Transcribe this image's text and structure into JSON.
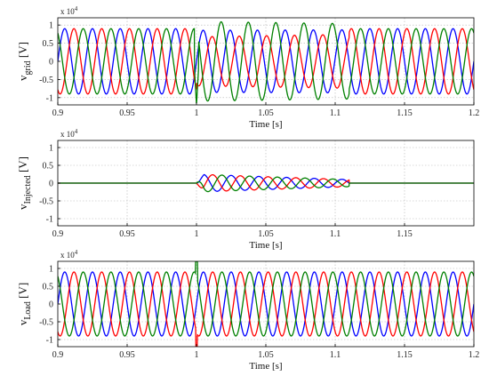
{
  "chart_data": [
    {
      "type": "line",
      "ylabel": {
        "base": "v",
        "sub": "grid",
        "unit": " [V]"
      },
      "xlabel": "Time [s]",
      "xlim": [
        0.9,
        1.2
      ],
      "ylim": [
        -1.2,
        1.2
      ],
      "y_multiplier": "x 10",
      "y_multiplier_exp": "4",
      "xticks": [
        "0.9",
        "0.95",
        "1",
        "1.05",
        "1.1",
        "1.15",
        "1.2"
      ],
      "yticks": [
        "1",
        "0.5",
        "0",
        "-0.5",
        "-1"
      ],
      "grid": true,
      "frequency_hz": 50,
      "amplitude_normal": 0.9,
      "disturbance_interval": [
        1.0,
        1.11
      ],
      "series": [
        {
          "phase_deg": 0,
          "color": "#0000ff"
        },
        {
          "phase_deg": -120,
          "color": "#ff0000"
        },
        {
          "phase_deg": 120,
          "color": "#008000"
        }
      ]
    },
    {
      "type": "line",
      "ylabel": {
        "base": "v",
        "sub": "Injected",
        "unit": " [V]"
      },
      "xlabel": "Time [s]",
      "xlim": [
        0.9,
        1.2
      ],
      "ylim": [
        -1.2,
        1.2
      ],
      "y_multiplier": "x 10",
      "y_multiplier_exp": "4",
      "xticks": [
        "0.9",
        "0.95",
        "1",
        "1.05",
        "1.1",
        "1.15"
      ],
      "yticks": [
        "1",
        "0.5",
        "0",
        "-0.5",
        "-1"
      ],
      "grid": true,
      "frequency_hz": 50,
      "injection_interval": [
        1.0,
        1.11
      ],
      "injection_amplitude": 0.25,
      "series": [
        {
          "phase_deg": 0,
          "color": "#0000ff"
        },
        {
          "phase_deg": -120,
          "color": "#ff0000"
        },
        {
          "phase_deg": 120,
          "color": "#008000"
        }
      ]
    },
    {
      "type": "line",
      "ylabel": {
        "base": "v",
        "sub": "Load",
        "unit": " [V]"
      },
      "xlabel": "Time [s]",
      "xlim": [
        0.9,
        1.2
      ],
      "ylim": [
        -1.2,
        1.2
      ],
      "y_multiplier": "x 10",
      "y_multiplier_exp": "4",
      "xticks": [
        "0.9",
        "0.95",
        "1",
        "1.05",
        "1.1",
        "1.15",
        "1.2"
      ],
      "yticks": [
        "1",
        "0.5",
        "0",
        "-0.5",
        "-1"
      ],
      "grid": true,
      "frequency_hz": 50,
      "amplitude_normal": 0.9,
      "series": [
        {
          "phase_deg": 0,
          "color": "#0000ff"
        },
        {
          "phase_deg": -120,
          "color": "#ff0000"
        },
        {
          "phase_deg": 120,
          "color": "#008000"
        }
      ]
    }
  ]
}
